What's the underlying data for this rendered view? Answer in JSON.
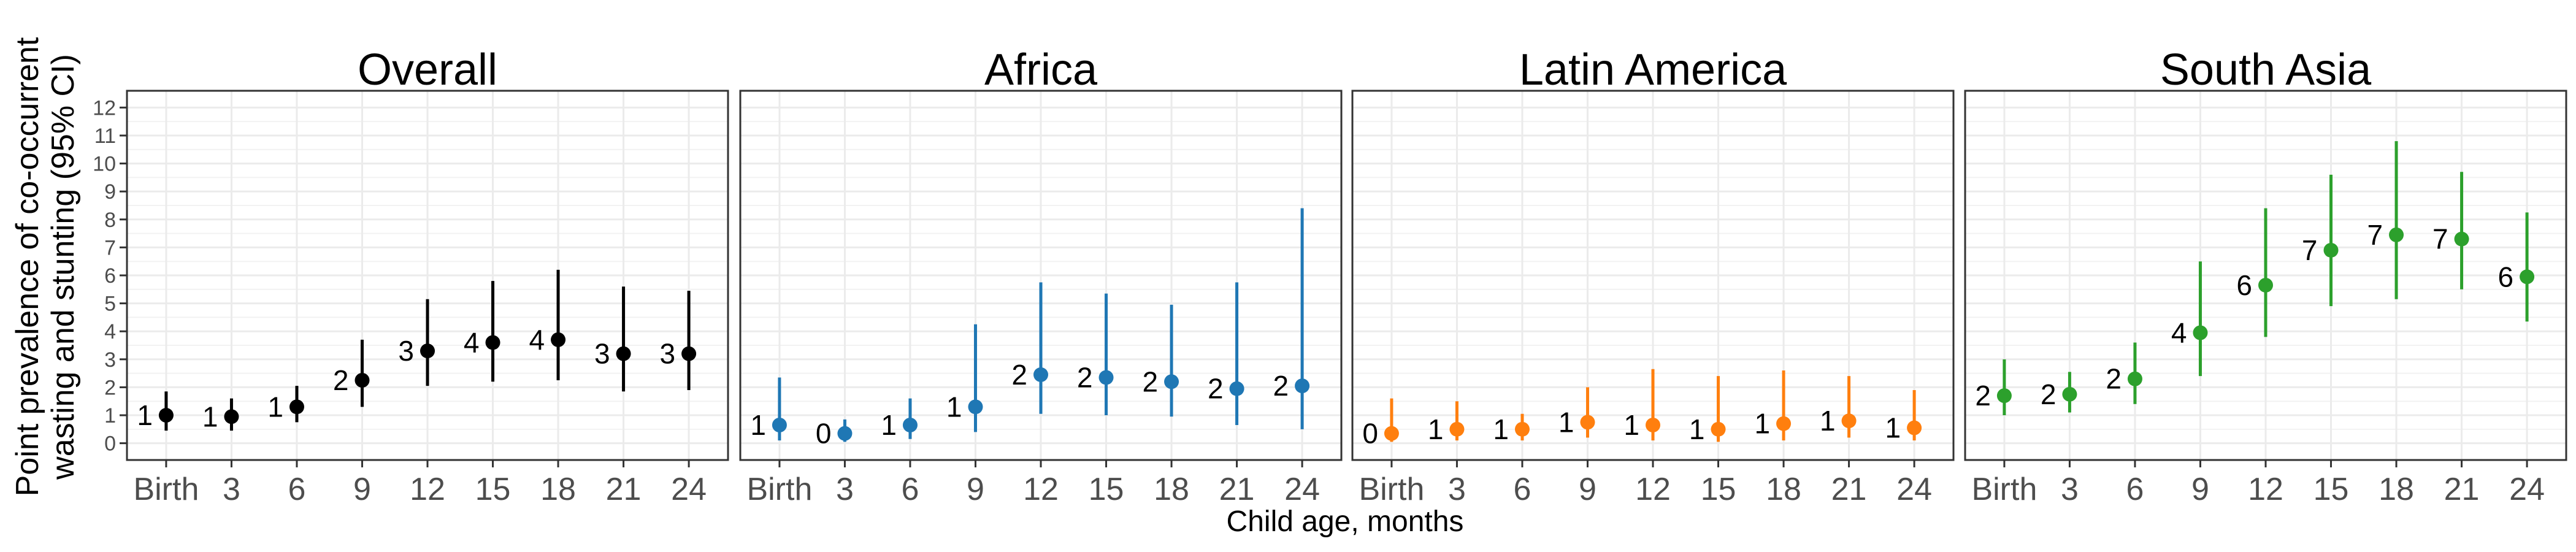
{
  "chart_data": {
    "type": "scatter",
    "ylabel_line1": "Point prevalence of co-occurrent",
    "ylabel_line2": "wasting and stunting (95% CI)",
    "xlabel": "Child age, months",
    "categories": [
      "Birth",
      "3",
      "6",
      "9",
      "12",
      "15",
      "18",
      "21",
      "24"
    ],
    "ylim": [
      -0.6,
      12.6
    ],
    "yticks": [
      0,
      1,
      2,
      3,
      4,
      5,
      6,
      7,
      8,
      9,
      10,
      11,
      12
    ],
    "grid": true,
    "legend": "none",
    "panels": [
      {
        "title": "Overall",
        "color": "#000000",
        "values": [
          1.0,
          0.95,
          1.3,
          2.25,
          3.3,
          3.6,
          3.7,
          3.2,
          3.2
        ],
        "ci_low": [
          0.45,
          0.45,
          0.75,
          1.3,
          2.05,
          2.2,
          2.25,
          1.85,
          1.9
        ],
        "ci_high": [
          1.85,
          1.6,
          2.05,
          3.7,
          5.15,
          5.8,
          6.2,
          5.6,
          5.45
        ],
        "labels": [
          "1",
          "1",
          "1",
          "2",
          "3",
          "4",
          "4",
          "3",
          "3"
        ]
      },
      {
        "title": "Africa",
        "color": "#1f77b4",
        "values": [
          0.65,
          0.35,
          0.65,
          1.3,
          2.45,
          2.35,
          2.2,
          1.95,
          2.05
        ],
        "ci_low": [
          0.1,
          0.05,
          0.15,
          0.4,
          1.05,
          1.0,
          0.95,
          0.65,
          0.5
        ],
        "ci_high": [
          2.35,
          0.85,
          1.6,
          4.25,
          5.75,
          5.35,
          4.95,
          5.75,
          8.4
        ],
        "labels": [
          "1",
          "0",
          "1",
          "1",
          "2",
          "2",
          "2",
          "2",
          "2"
        ]
      },
      {
        "title": "Latin America",
        "color": "#ff7f0e",
        "values": [
          0.35,
          0.5,
          0.5,
          0.75,
          0.65,
          0.5,
          0.7,
          0.8,
          0.55
        ],
        "ci_low": [
          0.05,
          0.1,
          0.1,
          0.2,
          0.1,
          0.05,
          0.1,
          0.2,
          0.1
        ],
        "ci_high": [
          1.6,
          1.5,
          1.05,
          2.0,
          2.65,
          2.4,
          2.6,
          2.4,
          1.9
        ],
        "labels": [
          "0",
          "1",
          "1",
          "1",
          "1",
          "1",
          "1",
          "1",
          "1"
        ]
      },
      {
        "title": "South Asia",
        "color": "#2ca02c",
        "values": [
          1.7,
          1.75,
          2.3,
          3.95,
          5.65,
          6.9,
          7.45,
          7.3,
          5.95
        ],
        "ci_low": [
          1.0,
          1.1,
          1.4,
          2.4,
          3.8,
          4.9,
          5.15,
          5.5,
          4.35
        ],
        "ci_high": [
          3.0,
          2.55,
          3.6,
          6.5,
          8.4,
          9.6,
          10.8,
          9.7,
          8.25
        ],
        "labels": [
          "2",
          "2",
          "2",
          "4",
          "6",
          "7",
          "7",
          "7",
          "6"
        ]
      }
    ]
  }
}
